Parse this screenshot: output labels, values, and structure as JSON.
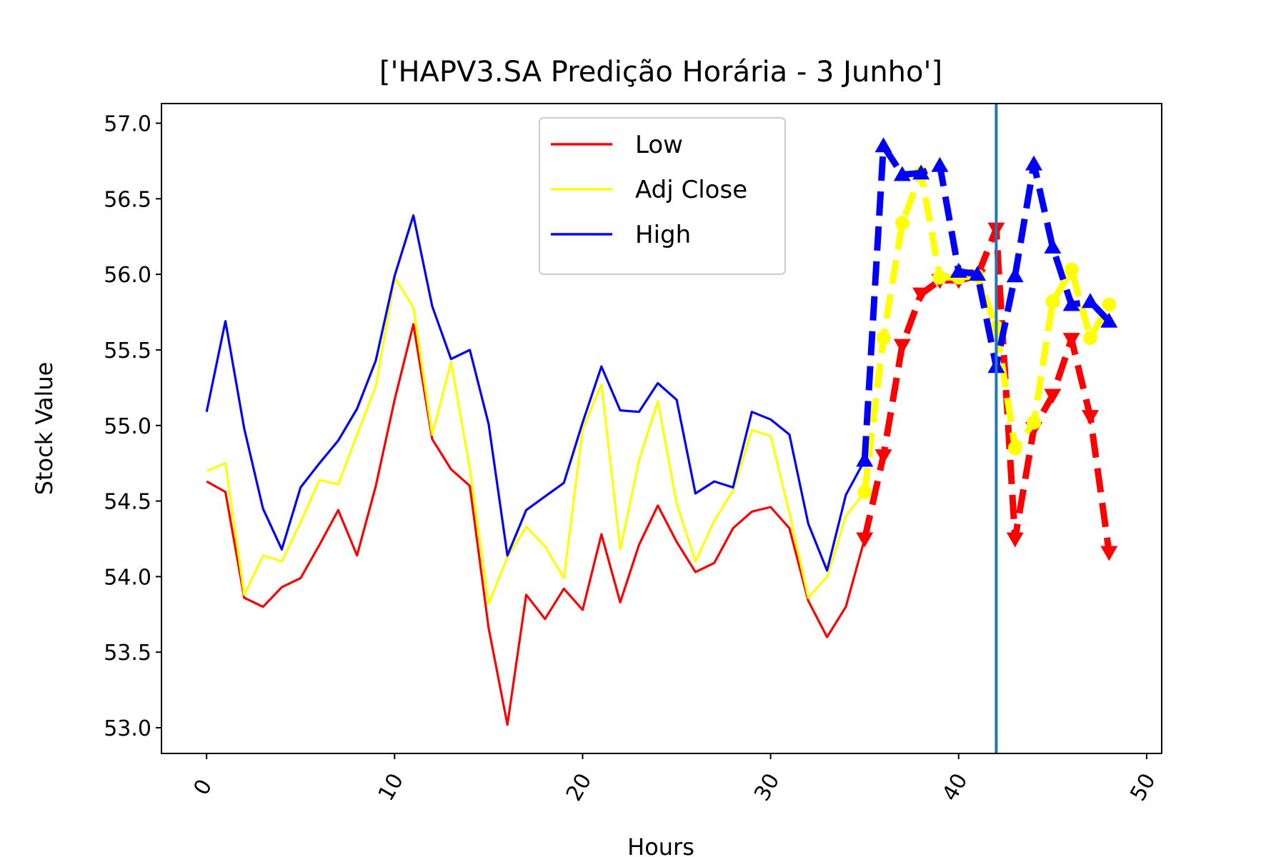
{
  "chart_data": {
    "type": "line",
    "title": "['HAPV3.SA Predição Horária - 3 Junho']",
    "xlabel": "Hours",
    "ylabel": "Stock Value",
    "xlim": [
      -2.4,
      50.8
    ],
    "ylim": [
      52.83,
      57.13
    ],
    "xticks": [
      0,
      10,
      20,
      30,
      40,
      50
    ],
    "xtick_labels": [
      "0",
      "10",
      "20",
      "30",
      "40",
      "50"
    ],
    "yticks": [
      53.0,
      53.5,
      54.0,
      54.5,
      55.0,
      55.5,
      56.0,
      56.5,
      57.0
    ],
    "ytick_labels": [
      "53.0",
      "53.5",
      "54.0",
      "54.5",
      "55.0",
      "55.5",
      "56.0",
      "56.5",
      "57.0"
    ],
    "grid": false,
    "legend_position": "top-center",
    "vline_x": 42,
    "vline_color": "#1f77b4",
    "series": [
      {
        "name": "Low",
        "color": "#ff0000",
        "style": "solid",
        "x": [
          0,
          1,
          2,
          3,
          4,
          5,
          6,
          7,
          8,
          9,
          10,
          11,
          12,
          13,
          14,
          15,
          16,
          17,
          18,
          19,
          20,
          21,
          22,
          23,
          24,
          25,
          26,
          27,
          28,
          29,
          30,
          31,
          32,
          33,
          34,
          35
        ],
        "values": [
          54.63,
          54.56,
          53.86,
          53.8,
          53.93,
          53.99,
          54.21,
          54.44,
          54.14,
          54.6,
          55.17,
          55.67,
          54.91,
          54.71,
          54.6,
          53.66,
          53.02,
          53.88,
          53.72,
          53.92,
          53.78,
          54.28,
          53.83,
          54.21,
          54.47,
          54.23,
          54.03,
          54.09,
          54.32,
          54.43,
          54.46,
          54.32,
          53.84,
          53.6,
          53.8,
          54.25
        ]
      },
      {
        "name": "Adj Close",
        "color": "#ffff00",
        "style": "solid",
        "x": [
          0,
          1,
          2,
          3,
          4,
          5,
          6,
          7,
          8,
          9,
          10,
          11,
          12,
          13,
          14,
          15,
          16,
          17,
          18,
          19,
          20,
          21,
          22,
          23,
          24,
          25,
          26,
          27,
          28,
          29,
          30,
          31,
          32,
          33,
          34,
          35
        ],
        "values": [
          54.7,
          54.75,
          53.88,
          54.14,
          54.1,
          54.36,
          54.64,
          54.61,
          54.94,
          55.26,
          55.98,
          55.78,
          54.94,
          55.42,
          54.71,
          53.82,
          54.13,
          54.33,
          54.2,
          53.99,
          54.98,
          55.27,
          54.18,
          54.77,
          55.16,
          54.48,
          54.1,
          54.37,
          54.57,
          54.97,
          54.93,
          54.42,
          53.86,
          54.0,
          54.4,
          54.56
        ]
      },
      {
        "name": "High",
        "color": "#0000ff",
        "style": "solid",
        "x": [
          0,
          1,
          2,
          3,
          4,
          5,
          6,
          7,
          8,
          9,
          10,
          11,
          12,
          13,
          14,
          15,
          16,
          17,
          18,
          19,
          20,
          21,
          22,
          23,
          24,
          25,
          26,
          27,
          28,
          29,
          30,
          31,
          32,
          33,
          34,
          35
        ],
        "values": [
          55.09,
          55.69,
          54.98,
          54.45,
          54.18,
          54.59,
          54.75,
          54.9,
          55.11,
          55.43,
          55.99,
          56.39,
          55.79,
          55.44,
          55.5,
          55.01,
          54.14,
          54.44,
          54.53,
          54.62,
          55.02,
          55.39,
          55.1,
          55.09,
          55.28,
          55.17,
          54.55,
          54.63,
          54.59,
          55.09,
          55.04,
          54.94,
          54.35,
          54.04,
          54.54,
          54.77
        ]
      },
      {
        "color": "#ff0000",
        "style": "dashed",
        "marker": "triangle-down",
        "x": [
          35,
          36,
          37,
          38,
          39,
          40,
          41,
          42,
          43,
          44,
          45,
          46,
          47,
          48
        ],
        "values": [
          54.25,
          54.8,
          55.53,
          55.87,
          55.96,
          55.96,
          55.99,
          56.3,
          54.25,
          54.98,
          55.2,
          55.57,
          55.06,
          54.16
        ]
      },
      {
        "color": "#ffff00",
        "style": "dashed",
        "marker": "circle",
        "x": [
          35,
          36,
          37,
          38,
          39,
          40,
          41,
          42,
          43,
          44,
          45,
          46,
          47,
          48
        ],
        "values": [
          54.56,
          55.58,
          56.34,
          56.67,
          55.98,
          55.98,
          55.99,
          55.65,
          54.85,
          55.02,
          55.82,
          56.03,
          55.58,
          55.8
        ]
      },
      {
        "color": "#0000ff",
        "style": "dashed",
        "marker": "triangle-up",
        "x": [
          35,
          36,
          37,
          38,
          39,
          40,
          41,
          42,
          43,
          44,
          45,
          46,
          47,
          48
        ],
        "values": [
          54.77,
          56.85,
          56.66,
          56.67,
          56.72,
          56.02,
          56.0,
          55.39,
          55.99,
          56.73,
          56.18,
          55.8,
          55.82,
          55.69
        ]
      }
    ]
  }
}
